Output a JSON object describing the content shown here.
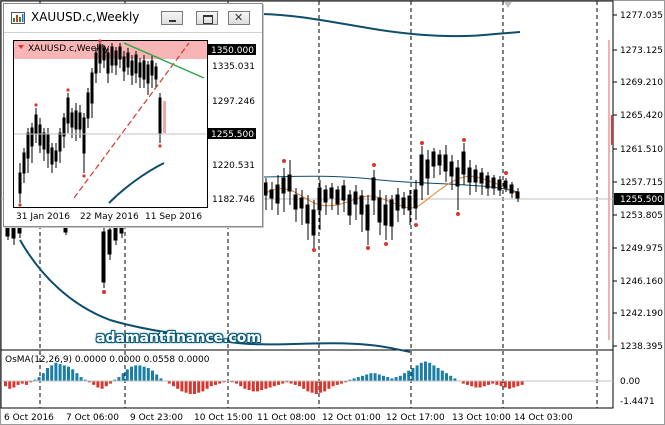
{
  "main_chart": {
    "price_labels": [
      "1277.035",
      "1273.125",
      "1269.210",
      "1265.420",
      "1261.510",
      "1257.715",
      "1255.500",
      "1253.805",
      "1249.975",
      "1246.160",
      "1242.190",
      "1238.395"
    ],
    "current_price": "1255.500",
    "time_labels": [
      "6 Oct 2016",
      "7 Oct 06:00",
      "9 Oct 23:00",
      "10 Oct 15:00",
      "11 Oct 08:00",
      "12 Oct 01:00",
      "12 Oct 17:00",
      "13 Oct 10:00",
      "14 Oct 03:00"
    ],
    "watermark": "adamantfinance.com",
    "colors": {
      "up_candle": "#000000",
      "ma_band": "#0e4d6b",
      "ma_orange": "#e8812e",
      "signal_red": "#d9362e",
      "osma_blue": "#1a7fa8",
      "osma_red": "#d9362e"
    }
  },
  "indicator": {
    "title": "OsMA(12,26,9) 0.0000 0.0000 0.0558 0.0000",
    "levels": [
      "0.00",
      "-1.4471"
    ]
  },
  "subwindow": {
    "title": "XAUUSD.c,Weekly",
    "inner_title": "XAUUSD.c,Weekly",
    "price_labels": [
      "1350.000",
      "1335.031",
      "1297.246",
      "1255.500",
      "1220.531",
      "1182.746"
    ],
    "highlight_top": "1350.000",
    "highlight_current": "1255.500",
    "time_labels": [
      "31 Jan 2016",
      "22 May 2016",
      "11 Sep 2016"
    ]
  }
}
